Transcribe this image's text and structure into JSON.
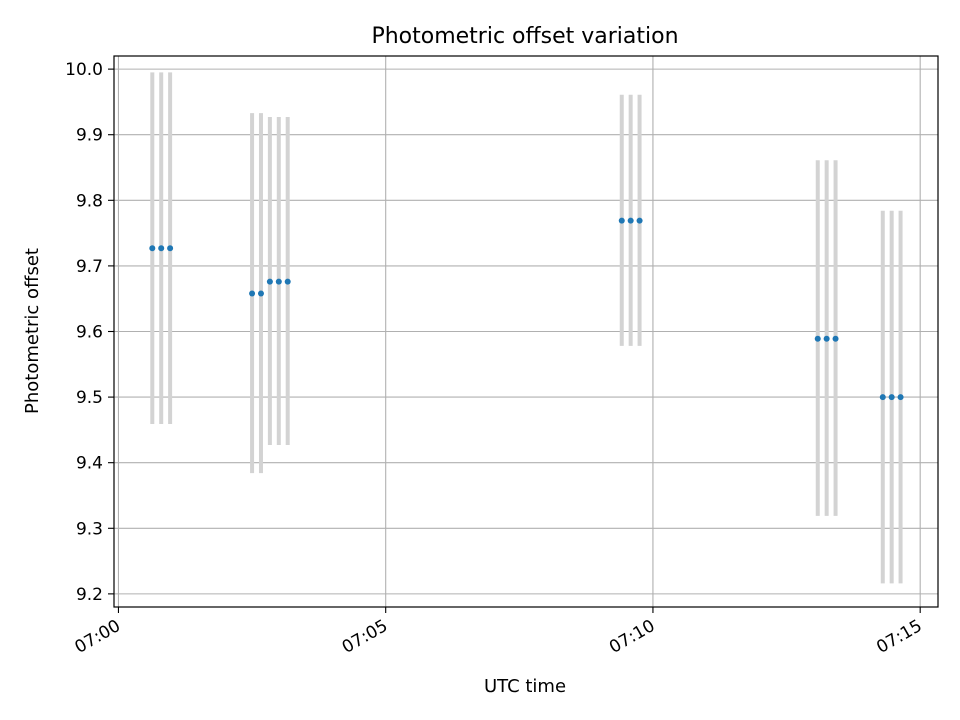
{
  "chart_data": {
    "type": "scatter",
    "title": "Photometric offset variation",
    "xlabel": "UTC time",
    "ylabel": "Photometric offset",
    "x_ticks": [
      "07:00",
      "07:05",
      "07:10",
      "07:15"
    ],
    "y_ticks": [
      "9.2",
      "9.3",
      "9.4",
      "9.5",
      "9.6",
      "9.7",
      "9.8",
      "9.9",
      "10.0"
    ],
    "xlim": [
      "06:59:55",
      "07:15:20"
    ],
    "ylim": [
      9.18,
      10.02
    ],
    "grid": true,
    "colors": {
      "point": "#1f77b4",
      "errorbar": "#d3d3d3",
      "grid": "#b0b0b0"
    },
    "points": [
      {
        "x": "07:00:38",
        "y": 9.727,
        "ylow": 9.459,
        "yhigh": 9.995
      },
      {
        "x": "07:00:48",
        "y": 9.727,
        "ylow": 9.459,
        "yhigh": 9.995
      },
      {
        "x": "07:00:58",
        "y": 9.727,
        "ylow": 9.459,
        "yhigh": 9.995
      },
      {
        "x": "07:02:30",
        "y": 9.658,
        "ylow": 9.384,
        "yhigh": 9.933
      },
      {
        "x": "07:02:40",
        "y": 9.658,
        "ylow": 9.384,
        "yhigh": 9.933
      },
      {
        "x": "07:02:50",
        "y": 9.676,
        "ylow": 9.427,
        "yhigh": 9.927
      },
      {
        "x": "07:03:00",
        "y": 9.676,
        "ylow": 9.427,
        "yhigh": 9.927
      },
      {
        "x": "07:03:10",
        "y": 9.676,
        "ylow": 9.427,
        "yhigh": 9.927
      },
      {
        "x": "07:09:25",
        "y": 9.769,
        "ylow": 9.578,
        "yhigh": 9.961
      },
      {
        "x": "07:09:35",
        "y": 9.769,
        "ylow": 9.578,
        "yhigh": 9.961
      },
      {
        "x": "07:09:45",
        "y": 9.769,
        "ylow": 9.578,
        "yhigh": 9.961
      },
      {
        "x": "07:13:05",
        "y": 9.589,
        "ylow": 9.319,
        "yhigh": 9.861
      },
      {
        "x": "07:13:15",
        "y": 9.589,
        "ylow": 9.319,
        "yhigh": 9.861
      },
      {
        "x": "07:13:25",
        "y": 9.589,
        "ylow": 9.319,
        "yhigh": 9.861
      },
      {
        "x": "07:14:18",
        "y": 9.5,
        "ylow": 9.216,
        "yhigh": 9.784
      },
      {
        "x": "07:14:28",
        "y": 9.5,
        "ylow": 9.216,
        "yhigh": 9.784
      },
      {
        "x": "07:14:38",
        "y": 9.5,
        "ylow": 9.216,
        "yhigh": 9.784
      }
    ]
  }
}
